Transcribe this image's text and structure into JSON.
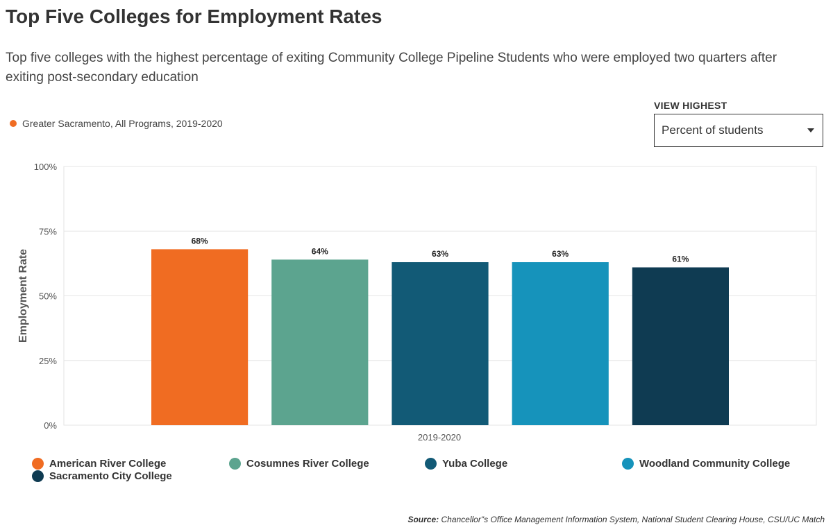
{
  "title": "Top Five Colleges for Employment Rates",
  "subtitle": "Top five colleges with the highest percentage of exiting Community College Pipeline Students who were employed two quarters after exiting post-secondary education",
  "filter_legend": {
    "label": "Greater Sacramento, All Programs, 2019-2020",
    "color": "#f06c22"
  },
  "view_control": {
    "label": "VIEW HIGHEST",
    "selected": "Percent of students"
  },
  "chart_data": {
    "type": "bar",
    "title": "",
    "categories": [
      "2019-2020"
    ],
    "xlabel": "",
    "ylabel": "Employment Rate",
    "ylim": [
      0,
      100
    ],
    "y_ticks": [
      "0%",
      "25%",
      "50%",
      "75%",
      "100%"
    ],
    "y_tick_values": [
      0,
      25,
      50,
      75,
      100
    ],
    "grid": true,
    "legend_position": "bottom",
    "series": [
      {
        "name": "American River College",
        "values": [
          68
        ],
        "label": "68%",
        "color": "#f06c22"
      },
      {
        "name": "Cosumnes River College",
        "values": [
          64
        ],
        "label": "64%",
        "color": "#5ca48f"
      },
      {
        "name": "Yuba College",
        "values": [
          63
        ],
        "label": "63%",
        "color": "#125a76"
      },
      {
        "name": "Woodland Community College",
        "values": [
          63
        ],
        "label": "63%",
        "color": "#1693bb"
      },
      {
        "name": "Sacramento City College",
        "values": [
          61
        ],
        "label": "61%",
        "color": "#0f3b52"
      }
    ]
  },
  "source": {
    "prefix": "Source:",
    "text": " Chancellor\"s Office Management Information System, National Student Clearing House, CSU/UC Match"
  }
}
